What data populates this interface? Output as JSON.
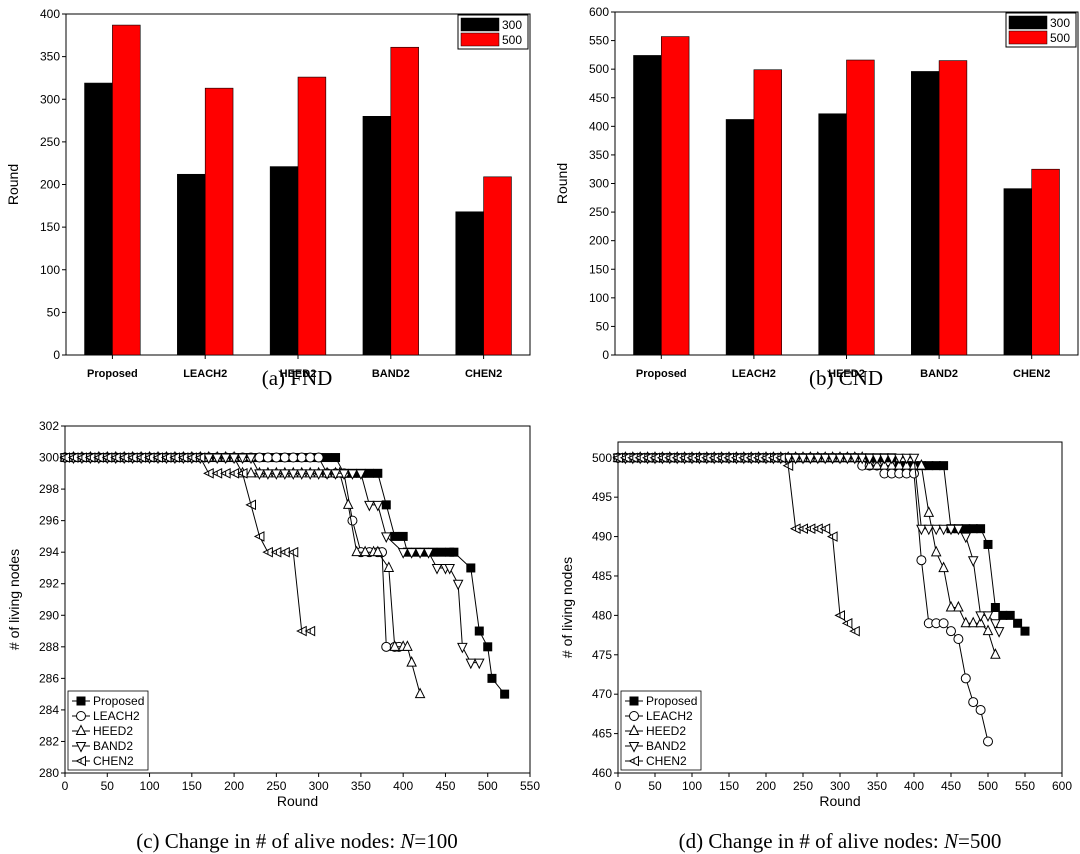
{
  "chart_data": [
    {
      "id": "a",
      "type": "bar",
      "caption": "(a) FND",
      "categories": [
        "Proposed",
        "LEACH2",
        "HEED2",
        "BAND2",
        "CHEN2"
      ],
      "series": [
        {
          "name": "300",
          "color": "#000000",
          "values": [
            319,
            212,
            221,
            280,
            168
          ]
        },
        {
          "name": "500",
          "color": "#ff0000",
          "values": [
            387,
            313,
            326,
            361,
            209
          ]
        }
      ],
      "xlabel": "",
      "ylabel": "Round",
      "ylim": [
        0,
        400
      ],
      "yticks": [
        0,
        50,
        100,
        150,
        200,
        250,
        300,
        350,
        400
      ],
      "legend": "top-right",
      "grid": false
    },
    {
      "id": "b",
      "type": "bar",
      "caption": "(b) CND",
      "categories": [
        "Proposed",
        "LEACH2",
        "HEED2",
        "BAND2",
        "CHEN2"
      ],
      "series": [
        {
          "name": "300",
          "color": "#000000",
          "values": [
            524,
            412,
            422,
            496,
            291
          ]
        },
        {
          "name": "500",
          "color": "#ff0000",
          "values": [
            557,
            499,
            516,
            515,
            325
          ]
        }
      ],
      "xlabel": "",
      "ylabel": "Round",
      "ylim": [
        0,
        600
      ],
      "yticks": [
        0,
        50,
        100,
        150,
        200,
        250,
        300,
        350,
        400,
        450,
        500,
        550,
        600
      ],
      "legend": "top-right",
      "grid": false
    },
    {
      "id": "c",
      "type": "line",
      "caption_prefix": "(c) Change in # of alive nodes: ",
      "caption_var": "N",
      "caption_suffix": "=100",
      "xlabel": "Round",
      "ylabel": "# of living nodes",
      "xlim": [
        0,
        550
      ],
      "ylim": [
        280,
        302
      ],
      "xticks": [
        0,
        50,
        100,
        150,
        200,
        250,
        300,
        350,
        400,
        450,
        500,
        550
      ],
      "yticks": [
        280,
        282,
        284,
        286,
        288,
        290,
        292,
        294,
        296,
        298,
        300,
        302
      ],
      "legend": "bottom-left",
      "grid": false,
      "series": [
        {
          "name": "Proposed",
          "marker": "square-filled",
          "points": [
            [
              0,
              300
            ],
            [
              320,
              300
            ],
            [
              330,
              299
            ],
            [
              370,
              299
            ],
            [
              380,
              297
            ],
            [
              390,
              295
            ],
            [
              400,
              295
            ],
            [
              405,
              294
            ],
            [
              460,
              294
            ],
            [
              480,
              293
            ],
            [
              490,
              289
            ],
            [
              500,
              288
            ],
            [
              505,
              286
            ],
            [
              520,
              285
            ]
          ]
        },
        {
          "name": "LEACH2",
          "marker": "circle-open",
          "points": [
            [
              0,
              300
            ],
            [
              300,
              300
            ],
            [
              310,
              299
            ],
            [
              330,
              299
            ],
            [
              340,
              296
            ],
            [
              350,
              294
            ],
            [
              360,
              294
            ],
            [
              375,
              294
            ],
            [
              380,
              288
            ],
            [
              390,
              288
            ],
            [
              395,
              288
            ]
          ]
        },
        {
          "name": "HEED2",
          "marker": "triangle-up-open",
          "points": [
            [
              0,
              300
            ],
            [
              200,
              300
            ],
            [
              210,
              299
            ],
            [
              325,
              299
            ],
            [
              335,
              297
            ],
            [
              345,
              294
            ],
            [
              370,
              294
            ],
            [
              383,
              293
            ],
            [
              390,
              288
            ],
            [
              405,
              288
            ],
            [
              410,
              287
            ],
            [
              420,
              285
            ]
          ]
        },
        {
          "name": "BAND2",
          "marker": "triangle-down-open",
          "points": [
            [
              0,
              300
            ],
            [
              220,
              300
            ],
            [
              230,
              299
            ],
            [
              350,
              299
            ],
            [
              360,
              297
            ],
            [
              370,
              297
            ],
            [
              380,
              295
            ],
            [
              400,
              294
            ],
            [
              430,
              294
            ],
            [
              440,
              293
            ],
            [
              455,
              293
            ],
            [
              465,
              292
            ],
            [
              470,
              288
            ],
            [
              480,
              287
            ],
            [
              490,
              287
            ]
          ]
        },
        {
          "name": "CHEN2",
          "marker": "tri-left-half",
          "points": [
            [
              0,
              300
            ],
            [
              160,
              300
            ],
            [
              170,
              299
            ],
            [
              210,
              299
            ],
            [
              220,
              297
            ],
            [
              230,
              295
            ],
            [
              240,
              294
            ],
            [
              270,
              294
            ],
            [
              280,
              289
            ],
            [
              290,
              289
            ]
          ]
        }
      ]
    },
    {
      "id": "d",
      "type": "line",
      "caption_prefix": "(d) Change in # of alive nodes: ",
      "caption_var": "N",
      "caption_suffix": "=500",
      "xlabel": "Round",
      "ylabel": "# of living nodes",
      "xlim": [
        0,
        600
      ],
      "ylim": [
        460,
        502
      ],
      "xticks": [
        0,
        50,
        100,
        150,
        200,
        250,
        300,
        350,
        400,
        450,
        500,
        550,
        600
      ],
      "yticks": [
        460,
        465,
        470,
        475,
        480,
        485,
        490,
        495,
        500
      ],
      "legend": "bottom-left",
      "grid": false,
      "series": [
        {
          "name": "Proposed",
          "marker": "square-filled",
          "points": [
            [
              0,
              500
            ],
            [
              320,
              500
            ],
            [
              370,
              500
            ],
            [
              380,
              499
            ],
            [
              430,
              499
            ],
            [
              440,
              499
            ],
            [
              450,
              491
            ],
            [
              490,
              491
            ],
            [
              500,
              489
            ],
            [
              510,
              481
            ],
            [
              520,
              480
            ],
            [
              530,
              480
            ],
            [
              540,
              479
            ],
            [
              550,
              478
            ]
          ]
        },
        {
          "name": "LEACH2",
          "marker": "circle-open",
          "points": [
            [
              0,
              500
            ],
            [
              320,
              500
            ],
            [
              330,
              499
            ],
            [
              350,
              499
            ],
            [
              360,
              498
            ],
            [
              400,
              498
            ],
            [
              410,
              487
            ],
            [
              420,
              479
            ],
            [
              440,
              479
            ],
            [
              450,
              478
            ],
            [
              460,
              477
            ],
            [
              470,
              472
            ],
            [
              480,
              469
            ],
            [
              490,
              468
            ],
            [
              500,
              464
            ]
          ]
        },
        {
          "name": "HEED2",
          "marker": "triangle-up-open",
          "points": [
            [
              0,
              500
            ],
            [
              330,
              500
            ],
            [
              340,
              499
            ],
            [
              380,
              499
            ],
            [
              390,
              499
            ],
            [
              400,
              499
            ],
            [
              410,
              499
            ],
            [
              420,
              493
            ],
            [
              430,
              488
            ],
            [
              440,
              486
            ],
            [
              450,
              481
            ],
            [
              460,
              481
            ],
            [
              470,
              479
            ],
            [
              490,
              479
            ],
            [
              500,
              478
            ],
            [
              510,
              475
            ]
          ]
        },
        {
          "name": "BAND2",
          "marker": "triangle-down-open",
          "points": [
            [
              0,
              500
            ],
            [
              330,
              500
            ],
            [
              400,
              500
            ],
            [
              410,
              491
            ],
            [
              460,
              491
            ],
            [
              470,
              490
            ],
            [
              480,
              487
            ],
            [
              490,
              480
            ],
            [
              500,
              480
            ],
            [
              510,
              479
            ],
            [
              515,
              478
            ]
          ]
        },
        {
          "name": "CHEN2",
          "marker": "tri-left-half",
          "points": [
            [
              0,
              500
            ],
            [
              220,
              500
            ],
            [
              230,
              499
            ],
            [
              240,
              491
            ],
            [
              280,
              491
            ],
            [
              290,
              490
            ],
            [
              300,
              480
            ],
            [
              310,
              479
            ],
            [
              320,
              478
            ]
          ]
        }
      ]
    }
  ]
}
